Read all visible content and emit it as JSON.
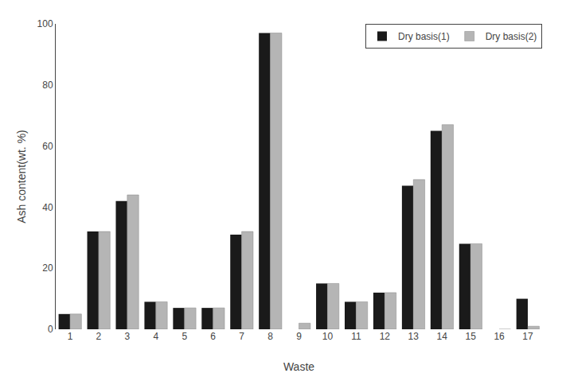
{
  "chart_data": {
    "type": "bar",
    "categories": [
      1,
      2,
      3,
      4,
      5,
      6,
      7,
      8,
      9,
      10,
      11,
      12,
      13,
      14,
      15,
      16,
      17
    ],
    "series": [
      {
        "name": "Dry basis(1)",
        "color": "#1a1a1a",
        "values": [
          5,
          32,
          42,
          9,
          7,
          7,
          31,
          97,
          0,
          15,
          9,
          12,
          47,
          65,
          28,
          0,
          10
        ]
      },
      {
        "name": "Dry basis(2)",
        "color": "#b5b5b5",
        "values": [
          5,
          32,
          44,
          9,
          7,
          7,
          32,
          97,
          2,
          15,
          9,
          12,
          49,
          67,
          28,
          0,
          1
        ]
      }
    ],
    "xlabel": "Waste",
    "ylabel": "Ash content(wt. %)",
    "ylim": [
      0,
      100
    ],
    "yticks": [
      0,
      20,
      40,
      60,
      80,
      100
    ],
    "grid": false,
    "legend": "upper right"
  }
}
